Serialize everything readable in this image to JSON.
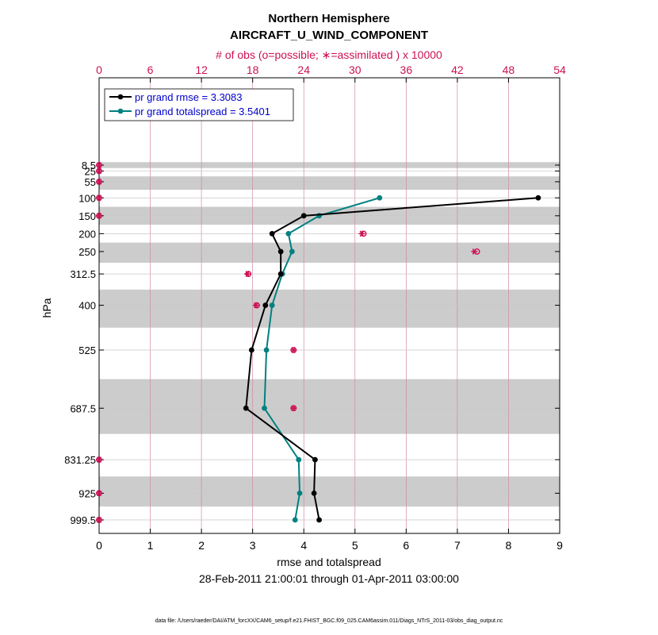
{
  "chart_data": {
    "type": "line",
    "title": "Northern Hemisphere",
    "subtitle": "AIRCRAFT_U_WIND_COMPONENT",
    "top_axis_label": "# of obs (o=possible; ∗=assimilated ) x 10000",
    "xlabel": "rmse and totalspread",
    "ylabel": "hPa",
    "date_range": "28-Feb-2011 21:00:01 through 01-Apr-2011 03:00:00",
    "footnote": "data file: /Users/raeder/DAI/ATM_forcXX/CAM6_setup/f.e21.FHIST_BGC.f09_025.CAM6assim.011/Diags_NTrS_2011-03/obs_diag_output.nc",
    "xlim": [
      0,
      9
    ],
    "x_ticks": [
      "0",
      "1",
      "2",
      "3",
      "4",
      "5",
      "6",
      "7",
      "8",
      "9"
    ],
    "top_xlim": [
      0,
      54
    ],
    "top_ticks": [
      "0",
      "6",
      "12",
      "18",
      "24",
      "30",
      "36",
      "42",
      "48",
      "54"
    ],
    "levels": [
      8.5,
      25,
      55,
      100,
      150,
      200,
      250,
      312.5,
      400,
      525,
      687.5,
      831.25,
      925,
      999.5
    ],
    "level_labels": [
      "8.5",
      "25",
      "55",
      "100",
      "150",
      "200",
      "250",
      "312.5",
      "400",
      "525",
      "687.5",
      "831.25",
      "925",
      "999.5"
    ],
    "series": [
      {
        "name": "pr grand rmse",
        "legend": "pr grand rmse = 3.3083",
        "color": "#000000",
        "values": [
          null,
          null,
          null,
          8.58,
          4.0,
          3.38,
          3.55,
          3.55,
          3.25,
          2.98,
          2.87,
          4.22,
          4.2,
          4.3
        ]
      },
      {
        "name": "pr grand totalspread",
        "legend": "pr grand totalspread = 3.5401",
        "color": "#008080",
        "values": [
          null,
          null,
          null,
          5.48,
          4.3,
          3.7,
          3.77,
          3.58,
          3.38,
          3.27,
          3.23,
          3.9,
          3.92,
          3.83
        ]
      }
    ],
    "obs_count": {
      "name": "# of obs x 10000",
      "color": "#cc1155",
      "possible": [
        0,
        0,
        0,
        0,
        0,
        31.0,
        44.3,
        17.5,
        18.5,
        22.8,
        22.8,
        0,
        0,
        0
      ],
      "assimilated": [
        0,
        0,
        0,
        0,
        0,
        30.8,
        44.0,
        17.4,
        18.4,
        22.8,
        22.8,
        0,
        0,
        0
      ]
    }
  }
}
